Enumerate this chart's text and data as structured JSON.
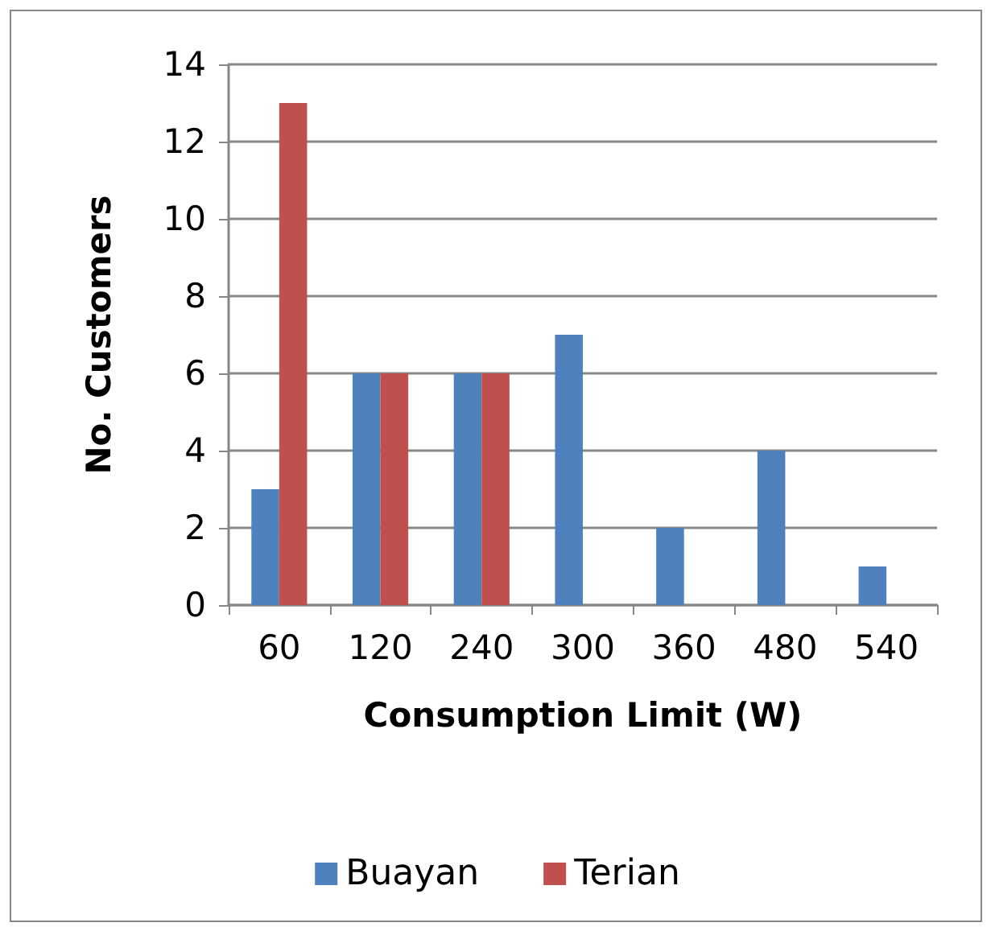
{
  "chart_data": {
    "type": "bar",
    "xlabel": "Consumption Limit (W)",
    "ylabel": "No. Customers",
    "categories": [
      "60",
      "120",
      "240",
      "300",
      "360",
      "480",
      "540"
    ],
    "series": [
      {
        "name": "Buayan",
        "color": "#4f81bd",
        "values": [
          3,
          6,
          6,
          7,
          2,
          4,
          1
        ]
      },
      {
        "name": "Terian",
        "color": "#c0504d",
        "values": [
          13,
          6,
          6,
          null,
          null,
          null,
          null
        ]
      }
    ],
    "ylim": [
      0,
      14
    ],
    "yticks": [
      0,
      2,
      4,
      6,
      8,
      10,
      12,
      14
    ],
    "grid": "y",
    "legend": "bottom"
  }
}
